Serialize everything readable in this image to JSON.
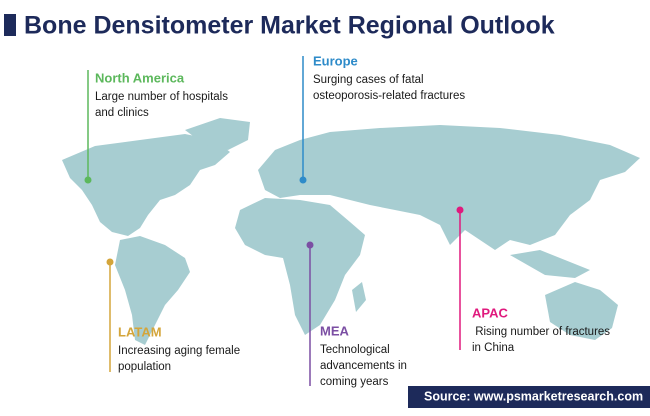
{
  "header": {
    "title": "Bone Densitometer Market Regional Outlook"
  },
  "regions": [
    {
      "name": "North America",
      "color": "#5cb85c",
      "description": [
        "Large number of hospitals",
        "and clinics"
      ]
    },
    {
      "name": "Europe",
      "color": "#2e8bc9",
      "description": [
        "Surging cases of fatal",
        "osteoporosis-related fractures"
      ]
    },
    {
      "name": "APAC",
      "color": "#e0197d",
      "description": [
        " Rising number of fractures",
        "in China"
      ]
    },
    {
      "name": "LATAM",
      "color": "#d4a53a",
      "description": [
        "Increasing aging female",
        "population"
      ]
    },
    {
      "name": "MEA",
      "color": "#7b4ea3",
      "description": [
        "Technological",
        "advancements in",
        "coming years"
      ]
    }
  ],
  "footer": {
    "source": "Source: www.psmarketresearch.com"
  }
}
